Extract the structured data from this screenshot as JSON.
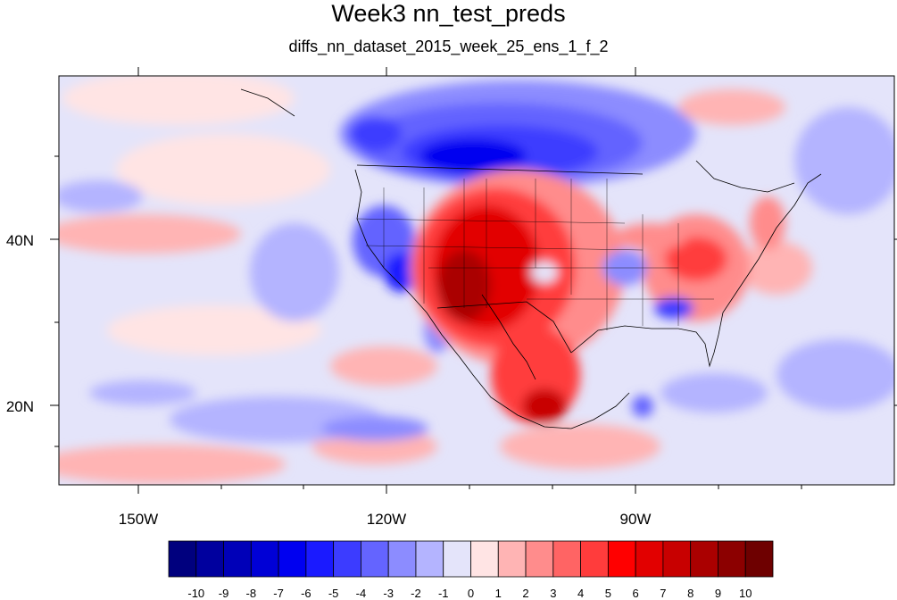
{
  "title": "Week3 nn_test_preds",
  "subtitle": "diffs_nn_dataset_2015_week_25_ens_1_f_2",
  "axes": {
    "lon_labels": [
      "150W",
      "120W",
      "90W"
    ],
    "lat_labels": [
      "40N",
      "20N"
    ],
    "lon_range": [
      -159,
      -60
    ],
    "lat_range": [
      11,
      60
    ]
  },
  "colorbar": {
    "labels": [
      "-10",
      "-9",
      "-8",
      "-7",
      "-6",
      "-5",
      "-4",
      "-3",
      "-2",
      "-1",
      "0",
      "1",
      "2",
      "3",
      "4",
      "5",
      "6",
      "7",
      "8",
      "9",
      "10"
    ],
    "colors": [
      "#00007e",
      "#00009e",
      "#0000b8",
      "#0000d6",
      "#0000f0",
      "#1a1aff",
      "#3c3cff",
      "#6464ff",
      "#8c8cff",
      "#b4b4ff",
      "#e4e4fa",
      "#ffe4e4",
      "#ffb4b4",
      "#ff8c8c",
      "#ff6464",
      "#ff3c3c",
      "#ff0000",
      "#e20000",
      "#c80000",
      "#aa0000",
      "#8c0000",
      "#6e0000"
    ]
  }
}
